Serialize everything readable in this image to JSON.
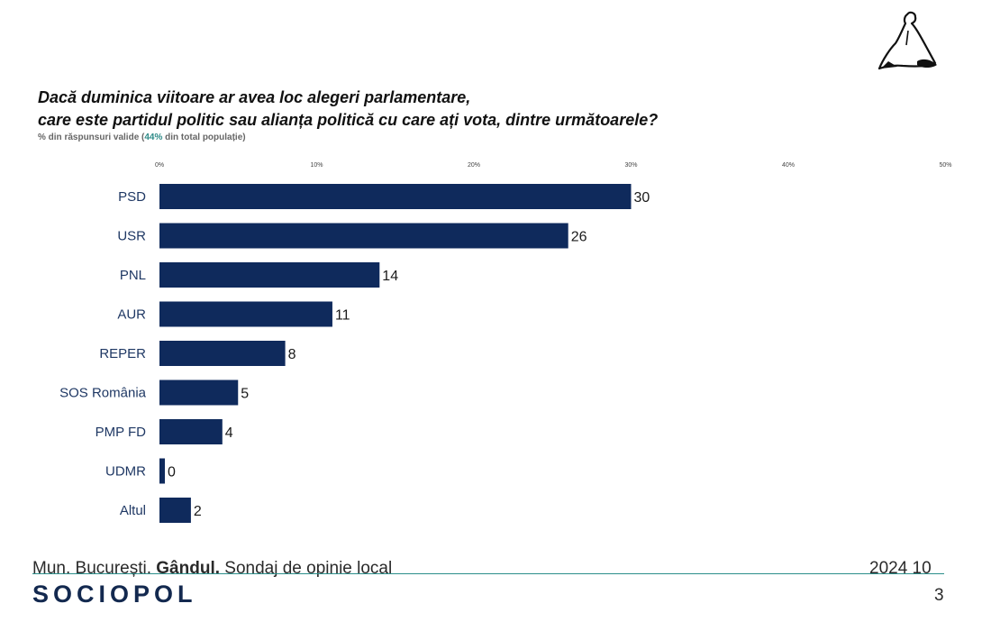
{
  "title_line1": "Dacă duminica viitoare ar avea loc alegeri parlamentare,",
  "title_line2": "care este partidul politic sau alianța politică cu care ați vota, dintre următoarele?",
  "subtitle_prefix": "% din răspunsuri valide (",
  "subtitle_accent": "44%",
  "subtitle_suffix": " din total populație)",
  "colors": {
    "bar": "#0f2a5c",
    "accent": "#2e8b88",
    "grid": "#e0e0e0",
    "label": "#1f3864"
  },
  "chart_data": {
    "type": "bar",
    "orientation": "horizontal",
    "categories": [
      "PSD",
      "USR",
      "PNL",
      "AUR",
      "REPER",
      "SOS România",
      "PMP FD",
      "UDMR",
      "Altul"
    ],
    "values": [
      30,
      26,
      14,
      11,
      8,
      5,
      4,
      0,
      2
    ],
    "xlim": [
      0,
      50
    ],
    "ticks": [
      0,
      10,
      20,
      30,
      40,
      50
    ],
    "tick_labels": [
      "0%",
      "10%",
      "20%",
      "30%",
      "40%",
      "50%"
    ],
    "title": "Dacă duminica viitoare ar avea loc alegeri parlamentare, care este partidul politic sau alianța politică cu care ați vota, dintre următoarele?",
    "xlabel": "",
    "ylabel": "",
    "grid": false
  },
  "footer": {
    "location": "Mun. București.",
    "client": "Gândul.",
    "survey": "Sondaj de opinie local",
    "date": "2024 10"
  },
  "brand": "SOCIOPOL",
  "page_number": "3"
}
